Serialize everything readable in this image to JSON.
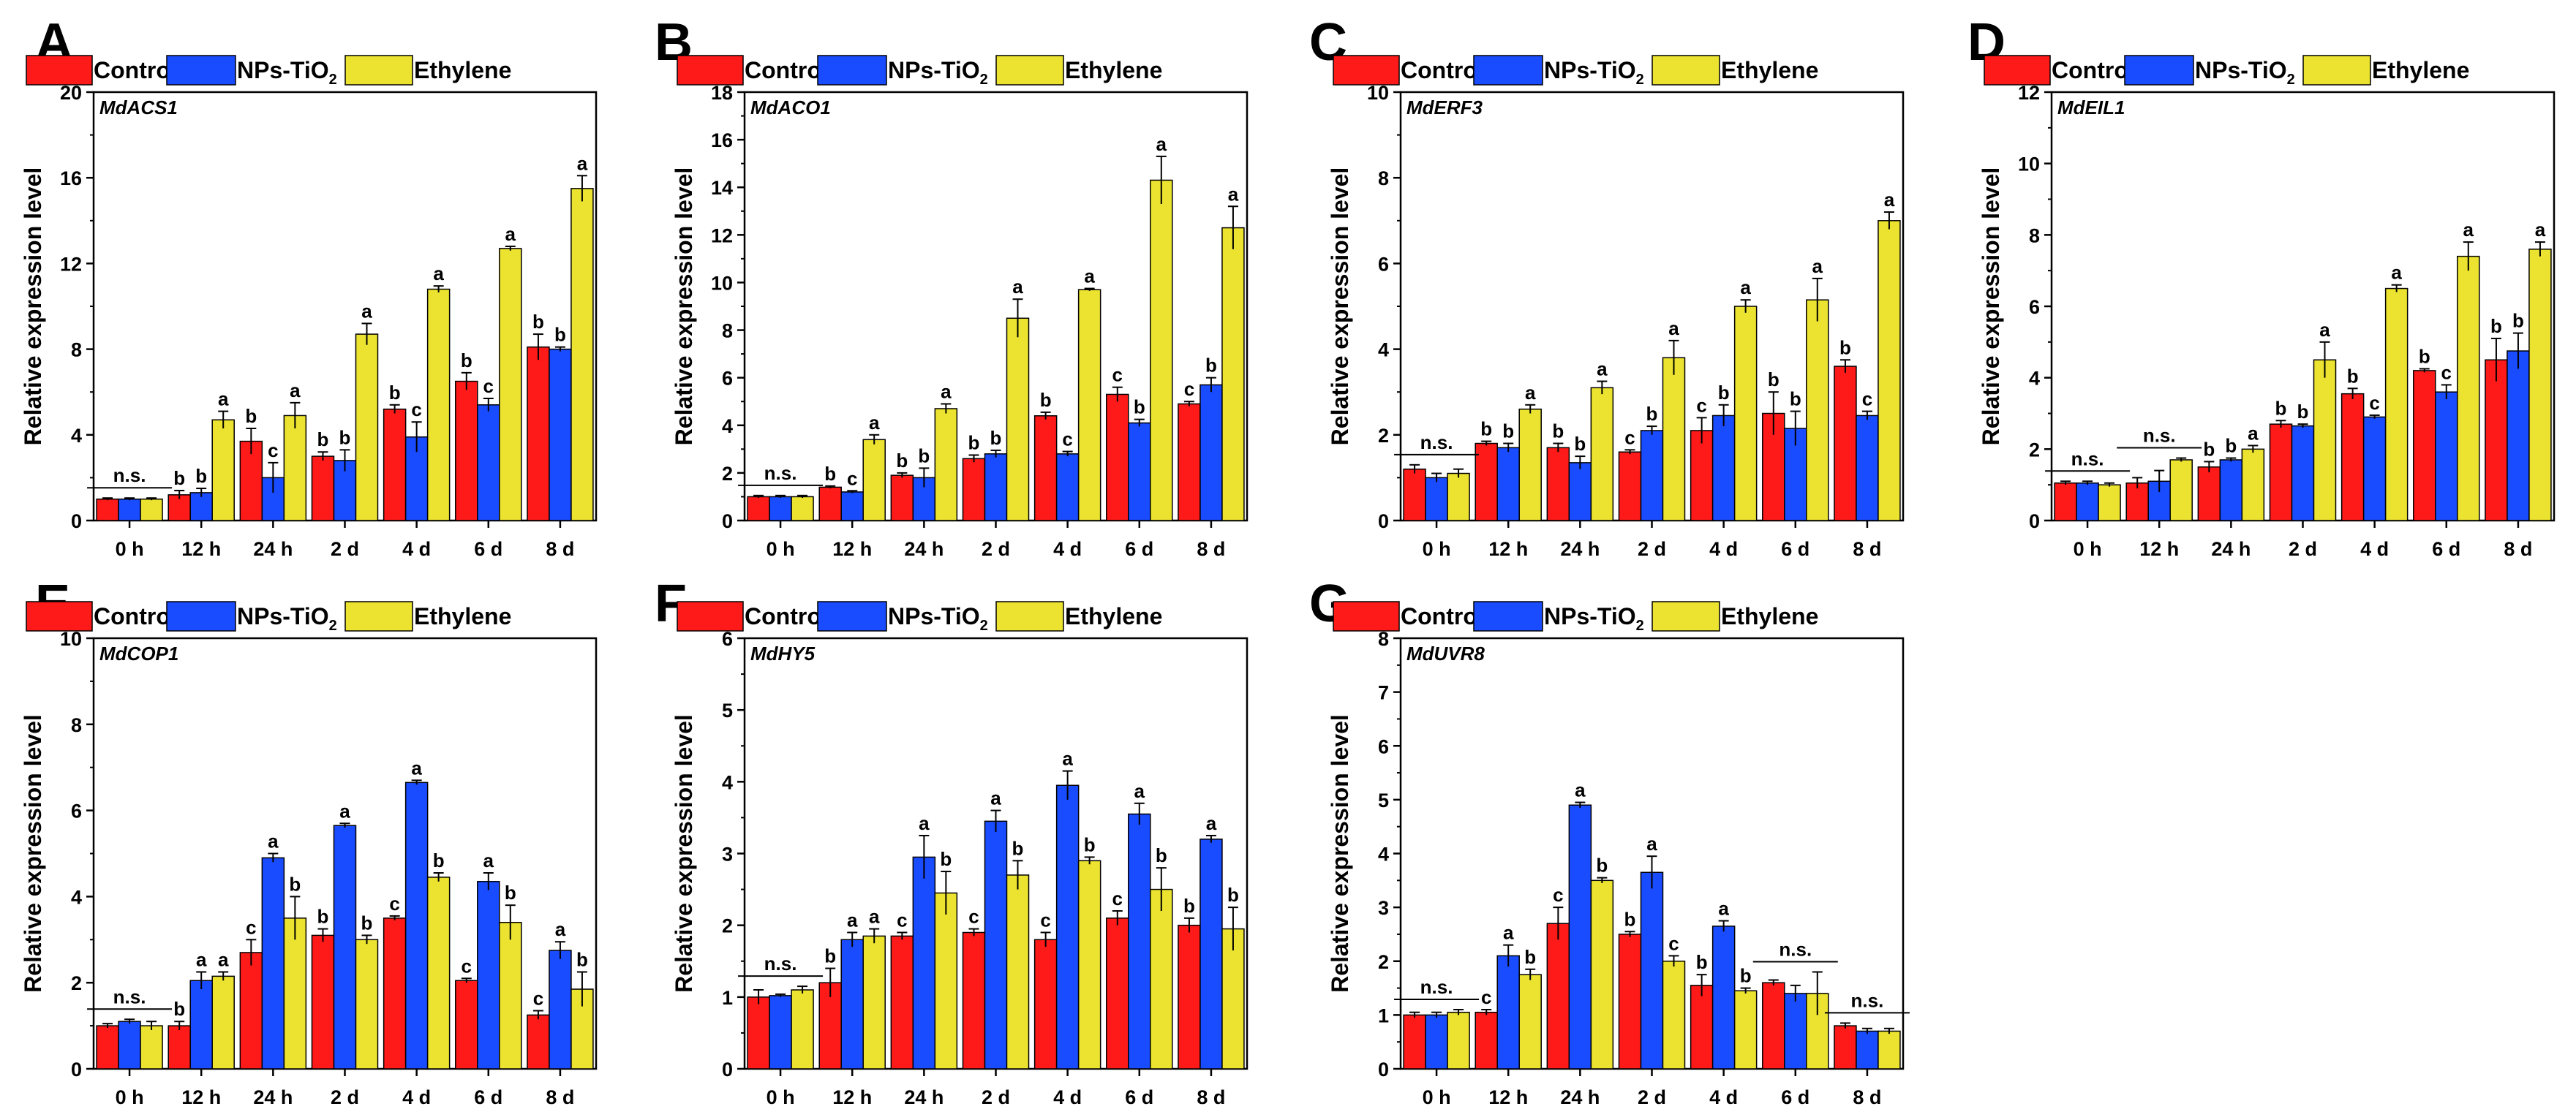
{
  "legend": {
    "series": [
      {
        "name": "Control",
        "color": "#ff1a1a"
      },
      {
        "name": "NPs-TiO",
        "sub": "2",
        "color": "#1a4cff"
      },
      {
        "name": "Ethylene",
        "color": "#ebe330"
      }
    ]
  },
  "chart_data": [
    {
      "panel": "A",
      "gene": "MdACS1",
      "type": "bar",
      "categories": [
        "0 h",
        "12 h",
        "24 h",
        "2 d",
        "4 d",
        "6 d",
        "8 d"
      ],
      "ylabel": "Relative expression level",
      "ylim": [
        0,
        20
      ],
      "yticks": [
        0,
        4,
        8,
        12,
        16,
        20
      ],
      "series": [
        {
          "name": "Control",
          "values": [
            1.0,
            1.2,
            3.7,
            3.0,
            5.2,
            6.5,
            8.1
          ],
          "errors": [
            0.05,
            0.2,
            0.6,
            0.2,
            0.2,
            0.4,
            0.6
          ],
          "letters": [
            "",
            "b",
            "b",
            "b",
            "b",
            "b",
            "b"
          ]
        },
        {
          "name": "NPs-TiO2",
          "values": [
            1.0,
            1.3,
            2.0,
            2.8,
            3.9,
            5.4,
            8.0
          ],
          "errors": [
            0.05,
            0.2,
            0.7,
            0.5,
            0.7,
            0.3,
            0.1
          ],
          "letters": [
            "",
            "b",
            "c",
            "b",
            "c",
            "c",
            "b"
          ]
        },
        {
          "name": "Ethylene",
          "values": [
            1.0,
            4.7,
            4.9,
            8.7,
            10.8,
            12.7,
            15.5
          ],
          "errors": [
            0.05,
            0.4,
            0.6,
            0.5,
            0.15,
            0.1,
            0.6
          ],
          "letters": [
            "",
            "a",
            "a",
            "a",
            "a",
            "a",
            "a"
          ]
        }
      ],
      "ns": [
        {
          "text": "n.s.",
          "index": 0
        }
      ]
    },
    {
      "panel": "B",
      "gene": "MdACO1",
      "type": "bar",
      "categories": [
        "0 h",
        "12 h",
        "24 h",
        "2 d",
        "4 d",
        "6 d",
        "8 d"
      ],
      "ylabel": "Relative expression level",
      "ylim": [
        0,
        18
      ],
      "yticks": [
        0,
        2,
        4,
        6,
        8,
        10,
        12,
        14,
        16,
        18
      ],
      "series": [
        {
          "name": "Control",
          "values": [
            1.0,
            1.4,
            1.9,
            2.6,
            4.4,
            5.3,
            4.9
          ],
          "errors": [
            0.05,
            0.05,
            0.1,
            0.15,
            0.15,
            0.3,
            0.1
          ],
          "letters": [
            "",
            "b",
            "b",
            "b",
            "b",
            "c",
            "c"
          ]
        },
        {
          "name": "NPs-TiO2",
          "values": [
            1.0,
            1.2,
            1.8,
            2.8,
            2.8,
            4.1,
            5.7
          ],
          "errors": [
            0.05,
            0.05,
            0.4,
            0.15,
            0.1,
            0.15,
            0.3
          ],
          "letters": [
            "",
            "c",
            "b",
            "b",
            "c",
            "b",
            "b"
          ]
        },
        {
          "name": "Ethylene",
          "values": [
            1.0,
            3.4,
            4.7,
            8.5,
            9.7,
            14.3,
            12.3
          ],
          "errors": [
            0.05,
            0.2,
            0.2,
            0.8,
            0.05,
            1.0,
            0.9
          ],
          "letters": [
            "",
            "a",
            "a",
            "a",
            "a",
            "a",
            "a"
          ]
        }
      ],
      "ns": [
        {
          "text": "n.s.",
          "index": 0
        }
      ]
    },
    {
      "panel": "C",
      "gene": "MdERF3",
      "type": "bar",
      "categories": [
        "0 h",
        "12 h",
        "24 h",
        "2 d",
        "4 d",
        "6 d",
        "8 d"
      ],
      "ylabel": "Relative expression level",
      "ylim": [
        0,
        10
      ],
      "yticks": [
        0,
        2,
        4,
        6,
        8,
        10
      ],
      "series": [
        {
          "name": "Control",
          "values": [
            1.2,
            1.8,
            1.7,
            1.6,
            2.1,
            2.5,
            3.6
          ],
          "errors": [
            0.1,
            0.05,
            0.1,
            0.05,
            0.3,
            0.5,
            0.15
          ],
          "letters": [
            "",
            "b",
            "b",
            "c",
            "c",
            "b",
            "b"
          ]
        },
        {
          "name": "NPs-TiO2",
          "values": [
            1.0,
            1.7,
            1.35,
            2.1,
            2.45,
            2.15,
            2.45
          ],
          "errors": [
            0.1,
            0.1,
            0.15,
            0.1,
            0.25,
            0.4,
            0.1
          ],
          "letters": [
            "",
            "b",
            "b",
            "b",
            "b",
            "b",
            "c"
          ]
        },
        {
          "name": "Ethylene",
          "values": [
            1.1,
            2.6,
            3.1,
            3.8,
            5.0,
            5.15,
            7.0
          ],
          "errors": [
            0.1,
            0.1,
            0.15,
            0.4,
            0.15,
            0.5,
            0.2
          ],
          "letters": [
            "",
            "a",
            "a",
            "a",
            "a",
            "a",
            "a"
          ]
        }
      ],
      "ns": [
        {
          "text": "n.s.",
          "index": 0
        }
      ]
    },
    {
      "panel": "D",
      "gene": "MdEIL1",
      "type": "bar",
      "categories": [
        "0 h",
        "12 h",
        "24 h",
        "2 d",
        "4 d",
        "6 d",
        "8 d"
      ],
      "ylabel": "Relative expression level",
      "ylim": [
        0,
        12
      ],
      "yticks": [
        0,
        2,
        4,
        6,
        8,
        10,
        12
      ],
      "series": [
        {
          "name": "Control",
          "values": [
            1.05,
            1.05,
            1.5,
            2.7,
            3.55,
            4.2,
            4.5
          ],
          "errors": [
            0.05,
            0.15,
            0.15,
            0.1,
            0.15,
            0.05,
            0.6
          ],
          "letters": [
            "",
            "",
            "b",
            "b",
            "b",
            "b",
            "b"
          ]
        },
        {
          "name": "NPs-TiO2",
          "values": [
            1.05,
            1.1,
            1.7,
            2.65,
            2.9,
            3.6,
            4.75
          ],
          "errors": [
            0.05,
            0.3,
            0.05,
            0.05,
            0.05,
            0.2,
            0.5
          ],
          "letters": [
            "",
            "",
            "b",
            "b",
            "c",
            "c",
            "b"
          ]
        },
        {
          "name": "Ethylene",
          "values": [
            1.0,
            1.7,
            2.0,
            4.5,
            6.5,
            7.4,
            7.6
          ],
          "errors": [
            0.05,
            0.05,
            0.1,
            0.5,
            0.1,
            0.4,
            0.2
          ],
          "letters": [
            "",
            "",
            "a",
            "a",
            "a",
            "a",
            "a"
          ]
        }
      ],
      "ns": [
        {
          "text": "n.s.",
          "index": 0
        },
        {
          "text": "n.s.",
          "index": 1
        }
      ]
    },
    {
      "panel": "E",
      "gene": "MdCOP1",
      "type": "bar",
      "categories": [
        "0 h",
        "12 h",
        "24 h",
        "2 d",
        "4 d",
        "6 d",
        "8 d"
      ],
      "ylabel": "Relative expression level",
      "ylim": [
        0,
        10
      ],
      "yticks": [
        0,
        2,
        4,
        6,
        8,
        10
      ],
      "series": [
        {
          "name": "Control",
          "values": [
            1.0,
            1.0,
            2.7,
            3.1,
            3.5,
            2.05,
            1.25
          ],
          "errors": [
            0.05,
            0.1,
            0.3,
            0.15,
            0.05,
            0.05,
            0.1
          ],
          "letters": [
            "",
            "b",
            "c",
            "b",
            "c",
            "c",
            "c"
          ]
        },
        {
          "name": "NPs-TiO2",
          "values": [
            1.1,
            2.05,
            4.9,
            5.65,
            6.65,
            4.35,
            2.75
          ],
          "errors": [
            0.05,
            0.2,
            0.1,
            0.05,
            0.05,
            0.2,
            0.2
          ],
          "letters": [
            "",
            "a",
            "a",
            "a",
            "a",
            "a",
            "a"
          ]
        },
        {
          "name": "Ethylene",
          "values": [
            1.0,
            2.15,
            3.5,
            3.0,
            4.45,
            3.4,
            1.85
          ],
          "errors": [
            0.1,
            0.1,
            0.5,
            0.1,
            0.1,
            0.4,
            0.4
          ],
          "letters": [
            "",
            "a",
            "b",
            "b",
            "b",
            "b",
            "b"
          ]
        }
      ],
      "ns": [
        {
          "text": "n.s.",
          "index": 0
        }
      ]
    },
    {
      "panel": "F",
      "gene": "MdHY5",
      "type": "bar",
      "categories": [
        "0 h",
        "12 h",
        "24 h",
        "2 d",
        "4 d",
        "6 d",
        "8 d"
      ],
      "ylabel": "Relative expression level",
      "ylim": [
        0,
        6
      ],
      "yticks": [
        0,
        1,
        2,
        3,
        4,
        5,
        6
      ],
      "series": [
        {
          "name": "Control",
          "values": [
            1.0,
            1.2,
            1.85,
            1.9,
            1.8,
            2.1,
            2.0
          ],
          "errors": [
            0.1,
            0.2,
            0.05,
            0.05,
            0.1,
            0.1,
            0.1
          ],
          "letters": [
            "",
            "b",
            "c",
            "c",
            "c",
            "c",
            "b"
          ]
        },
        {
          "name": "NPs-TiO2",
          "values": [
            1.02,
            1.8,
            2.95,
            3.45,
            3.95,
            3.55,
            3.2
          ],
          "errors": [
            0.02,
            0.1,
            0.3,
            0.15,
            0.2,
            0.15,
            0.05
          ],
          "letters": [
            "",
            "a",
            "a",
            "a",
            "a",
            "a",
            "a"
          ]
        },
        {
          "name": "Ethylene",
          "values": [
            1.1,
            1.85,
            2.45,
            2.7,
            2.9,
            2.5,
            1.95
          ],
          "errors": [
            0.05,
            0.1,
            0.3,
            0.2,
            0.05,
            0.3,
            0.3
          ],
          "letters": [
            "",
            "a",
            "b",
            "b",
            "b",
            "b",
            "b"
          ]
        }
      ],
      "ns": [
        {
          "text": "n.s.",
          "index": 0
        }
      ]
    },
    {
      "panel": "G",
      "gene": "MdUVR8",
      "type": "bar",
      "categories": [
        "0 h",
        "12 h",
        "24 h",
        "2 d",
        "4 d",
        "6 d",
        "8 d"
      ],
      "ylabel": "Relative expression level",
      "ylim": [
        0,
        8
      ],
      "yticks": [
        0,
        1,
        2,
        3,
        4,
        5,
        6,
        7,
        8
      ],
      "series": [
        {
          "name": "Control",
          "values": [
            1.0,
            1.05,
            2.7,
            2.5,
            1.55,
            1.6,
            0.8
          ],
          "errors": [
            0.05,
            0.05,
            0.3,
            0.05,
            0.2,
            0.05,
            0.05
          ],
          "letters": [
            "",
            "c",
            "c",
            "b",
            "b",
            "",
            ""
          ]
        },
        {
          "name": "NPs-TiO2",
          "values": [
            1.0,
            2.1,
            4.9,
            3.65,
            2.65,
            1.4,
            0.7
          ],
          "errors": [
            0.05,
            0.2,
            0.05,
            0.3,
            0.1,
            0.15,
            0.05
          ],
          "letters": [
            "",
            "a",
            "a",
            "a",
            "a",
            "",
            ""
          ]
        },
        {
          "name": "Ethylene",
          "values": [
            1.05,
            1.75,
            3.5,
            2.0,
            1.45,
            1.4,
            0.7
          ],
          "errors": [
            0.05,
            0.1,
            0.05,
            0.1,
            0.05,
            0.4,
            0.05
          ],
          "letters": [
            "",
            "b",
            "b",
            "c",
            "b",
            "",
            ""
          ]
        }
      ],
      "ns": [
        {
          "text": "n.s.",
          "index": 0
        },
        {
          "text": "n.s.",
          "index": 5
        },
        {
          "text": "n.s.",
          "index": 6
        }
      ]
    }
  ]
}
